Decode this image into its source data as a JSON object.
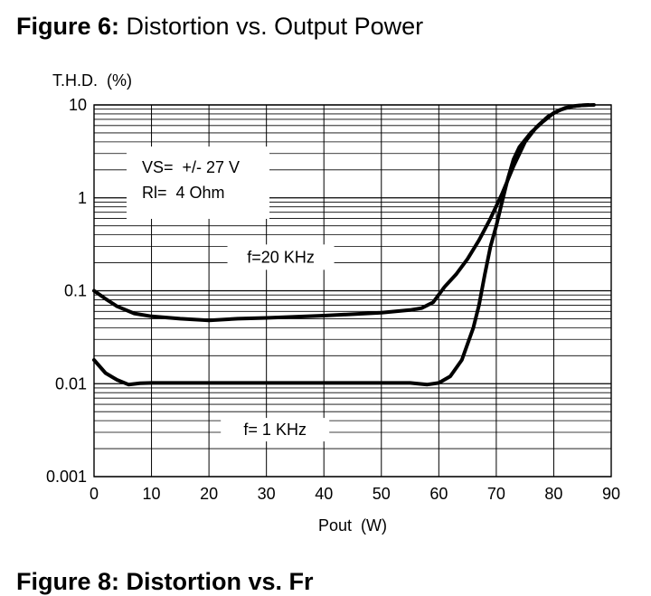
{
  "figure": {
    "number_label": "Figure 6:",
    "title": "Distortion vs. Output Power",
    "next_figure_partial": "Figure 8: Distortion vs. Fr"
  },
  "chart_data": {
    "type": "line",
    "title": "Distortion vs. Output Power",
    "xlabel": "Pout  (W)",
    "ylabel": "T.H.D.  (%)",
    "xlim": [
      0,
      90
    ],
    "ylim": [
      0.001,
      10
    ],
    "yscale": "log",
    "grid": true,
    "x_ticks": [
      0,
      10,
      20,
      30,
      40,
      50,
      60,
      70,
      80,
      90
    ],
    "x_tick_labels": [
      "0",
      "10",
      "20",
      "30",
      "40",
      "50",
      "60",
      "70",
      "80",
      "90"
    ],
    "y_ticks": [
      0.001,
      0.01,
      0.1,
      1,
      10
    ],
    "y_tick_labels": [
      "0.001",
      "0.01",
      "0.1",
      "1",
      "10"
    ],
    "conditions": [
      "VS=  +/- 27 V",
      "Rl=  4 Ohm"
    ],
    "series": [
      {
        "name": "f=20 KHz",
        "points": [
          [
            0,
            0.1
          ],
          [
            2,
            0.082
          ],
          [
            4,
            0.068
          ],
          [
            7,
            0.057
          ],
          [
            10,
            0.053
          ],
          [
            15,
            0.05
          ],
          [
            20,
            0.048
          ],
          [
            25,
            0.05
          ],
          [
            30,
            0.051
          ],
          [
            40,
            0.054
          ],
          [
            50,
            0.058
          ],
          [
            55,
            0.062
          ],
          [
            57,
            0.065
          ],
          [
            59,
            0.075
          ],
          [
            61,
            0.11
          ],
          [
            63,
            0.15
          ],
          [
            65,
            0.22
          ],
          [
            67,
            0.35
          ],
          [
            69,
            0.6
          ],
          [
            71,
            1.1
          ],
          [
            73,
            2.2
          ],
          [
            75,
            4.0
          ],
          [
            77,
            5.8
          ],
          [
            79,
            7.5
          ],
          [
            81,
            8.8
          ],
          [
            83,
            9.6
          ],
          [
            85,
            9.9
          ],
          [
            87,
            10
          ]
        ]
      },
      {
        "name": "f= 1 KHz",
        "points": [
          [
            0,
            0.018
          ],
          [
            2,
            0.013
          ],
          [
            4,
            0.011
          ],
          [
            6,
            0.0098
          ],
          [
            8,
            0.0101
          ],
          [
            10,
            0.0102
          ],
          [
            20,
            0.0102
          ],
          [
            30,
            0.0102
          ],
          [
            40,
            0.0102
          ],
          [
            50,
            0.0102
          ],
          [
            55,
            0.0102
          ],
          [
            58,
            0.0098
          ],
          [
            60,
            0.0102
          ],
          [
            62,
            0.012
          ],
          [
            64,
            0.018
          ],
          [
            66,
            0.04
          ],
          [
            67,
            0.07
          ],
          [
            68,
            0.15
          ],
          [
            69,
            0.3
          ],
          [
            70,
            0.5
          ],
          [
            71,
            0.9
          ],
          [
            72,
            1.6
          ],
          [
            73,
            2.6
          ],
          [
            74,
            3.5
          ],
          [
            76,
            5.0
          ],
          [
            78,
            6.5
          ],
          [
            80,
            8.2
          ],
          [
            82,
            9.3
          ],
          [
            84,
            9.8
          ],
          [
            86,
            10
          ]
        ]
      }
    ]
  }
}
